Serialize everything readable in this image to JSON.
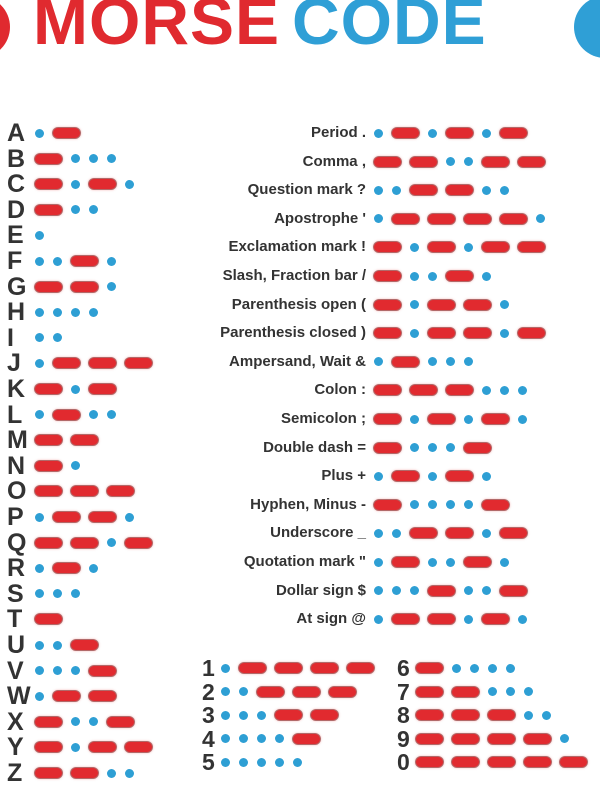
{
  "title": {
    "word1": "MORSE",
    "word2": "CODE",
    "word1_color": "#e02a2f",
    "word2_color": "#2f9fd6"
  },
  "legend": {
    "dot_color": "#2e9fd4",
    "dash_color": "#e12a2f",
    "dot_symbol": ".",
    "dash_symbol": "-"
  },
  "letters": [
    {
      "char": "A",
      "code": ".-"
    },
    {
      "char": "B",
      "code": "-..."
    },
    {
      "char": "C",
      "code": "-.-."
    },
    {
      "char": "D",
      "code": "-.."
    },
    {
      "char": "E",
      "code": "."
    },
    {
      "char": "F",
      "code": "..-."
    },
    {
      "char": "G",
      "code": "--."
    },
    {
      "char": "H",
      "code": "...."
    },
    {
      "char": "I",
      "code": ".."
    },
    {
      "char": "J",
      "code": ".---"
    },
    {
      "char": "K",
      "code": "-.-"
    },
    {
      "char": "L",
      "code": ".-.."
    },
    {
      "char": "M",
      "code": "--"
    },
    {
      "char": "N",
      "code": "-."
    },
    {
      "char": "O",
      "code": "---"
    },
    {
      "char": "P",
      "code": ".--."
    },
    {
      "char": "Q",
      "code": "--.-"
    },
    {
      "char": "R",
      "code": ".-."
    },
    {
      "char": "S",
      "code": "..."
    },
    {
      "char": "T",
      "code": "-"
    },
    {
      "char": "U",
      "code": "..-"
    },
    {
      "char": "V",
      "code": "...-"
    },
    {
      "char": "W",
      "code": ".--"
    },
    {
      "char": "X",
      "code": "-..-"
    },
    {
      "char": "Y",
      "code": "-.--"
    },
    {
      "char": "Z",
      "code": "--.."
    }
  ],
  "punctuation": [
    {
      "label": "Period .",
      "code": ".-.-.-"
    },
    {
      "label": "Comma ,",
      "code": "--..--"
    },
    {
      "label": "Question mark ?",
      "code": "..--.."
    },
    {
      "label": "Apostrophe '",
      "code": ".----."
    },
    {
      "label": "Exclamation mark !",
      "code": "-.-.--"
    },
    {
      "label": "Slash, Fraction bar /",
      "code": "-..-."
    },
    {
      "label": "Parenthesis open (",
      "code": "-.--."
    },
    {
      "label": "Parenthesis closed )",
      "code": "-.--.-"
    },
    {
      "label": "Ampersand, Wait &",
      "code": ".-..."
    },
    {
      "label": "Colon :",
      "code": "---..."
    },
    {
      "label": "Semicolon ;",
      "code": "-.-.-."
    },
    {
      "label": "Double dash =",
      "code": "-...-"
    },
    {
      "label": "Plus +",
      "code": ".-.-."
    },
    {
      "label": "Hyphen, Minus -",
      "code": "-....-"
    },
    {
      "label": "Underscore _",
      "code": "..--.-"
    },
    {
      "label": "Quotation mark \"",
      "code": ".-..-."
    },
    {
      "label": "Dollar sign $",
      "code": "...-..-"
    },
    {
      "label": "At sign @",
      "code": ".--.-."
    }
  ],
  "numbers_left": [
    {
      "char": "1",
      "code": ".----"
    },
    {
      "char": "2",
      "code": "..---"
    },
    {
      "char": "3",
      "code": "...--"
    },
    {
      "char": "4",
      "code": "....-"
    },
    {
      "char": "5",
      "code": "....."
    }
  ],
  "numbers_right": [
    {
      "char": "6",
      "code": "-...."
    },
    {
      "char": "7",
      "code": "--..."
    },
    {
      "char": "8",
      "code": "---.."
    },
    {
      "char": "9",
      "code": "----."
    },
    {
      "char": "0",
      "code": "-----"
    }
  ]
}
